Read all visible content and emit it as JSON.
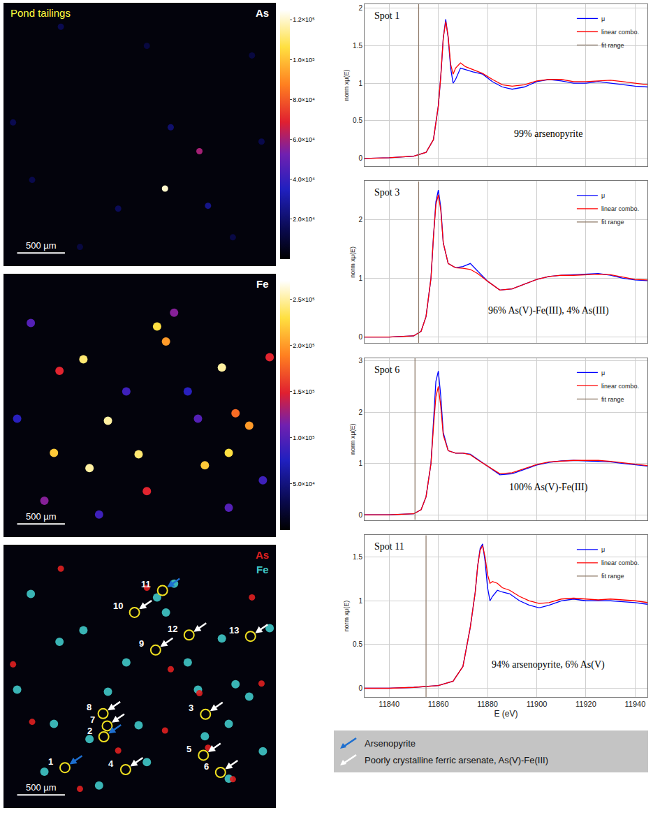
{
  "chart_data": [
    {
      "type": "map",
      "title": "Pond tailings",
      "element": "As",
      "xlim": [
        0,
        2850
      ],
      "ylim": [
        0,
        2750
      ],
      "tick_labels": false,
      "colorbar": {
        "range": [
          0,
          125000
        ],
        "ticks": [
          {
            "value": 20000,
            "label": "2.0×10⁴"
          },
          {
            "value": 40000,
            "label": "4.0×10⁴"
          },
          {
            "value": 60000,
            "label": "6.0×10⁴"
          },
          {
            "value": 80000,
            "label": "8.0×10⁴"
          },
          {
            "value": 100000,
            "label": "1.0×10⁵"
          },
          {
            "value": 120000,
            "label": "1.2×10⁵"
          }
        ]
      },
      "particles": [
        [
          2050,
          1200,
          60000
        ],
        [
          2140,
          630,
          25000
        ],
        [
          1690,
          810,
          120000
        ],
        [
          600,
          2500,
          15000
        ],
        [
          1500,
          2300,
          12000
        ],
        [
          100,
          1500,
          15000
        ],
        [
          2700,
          1300,
          14000
        ],
        [
          1200,
          600,
          16000
        ],
        [
          2400,
          300,
          13000
        ],
        [
          800,
          200,
          12000
        ],
        [
          1750,
          1450,
          20000
        ],
        [
          300,
          900,
          14000
        ],
        [
          2600,
          2200,
          12000
        ]
      ],
      "scale_bar": {
        "length": 500,
        "label": "500 µm"
      }
    },
    {
      "type": "map",
      "element": "Fe",
      "xlim": [
        0,
        2850
      ],
      "ylim": [
        0,
        2750
      ],
      "tick_labels": false,
      "colorbar": {
        "range": [
          0,
          270000
        ],
        "ticks": [
          {
            "value": 50000,
            "label": "5.0×10⁴"
          },
          {
            "value": 100000,
            "label": "1.0×10⁵"
          },
          {
            "value": 150000,
            "label": "1.5×10⁵"
          },
          {
            "value": 200000,
            "label": "2.0×10⁵"
          },
          {
            "value": 250000,
            "label": "2.5×10⁵"
          }
        ]
      },
      "particles": [
        [
          1607,
          2200,
          230000
        ],
        [
          1700,
          2043,
          200000
        ],
        [
          836,
          1857,
          240000
        ],
        [
          2285,
          1771,
          250000
        ],
        [
          586,
          1736,
          150000
        ],
        [
          1093,
          1214,
          250000
        ],
        [
          2035,
          1236,
          100000
        ],
        [
          528,
          879,
          220000
        ],
        [
          900,
          721,
          250000
        ],
        [
          1414,
          864,
          240000
        ],
        [
          2107,
          750,
          220000
        ],
        [
          2357,
          879,
          230000
        ],
        [
          2571,
          1164,
          200000
        ],
        [
          2428,
          1293,
          180000
        ],
        [
          1500,
          479,
          150000
        ],
        [
          1785,
          2343,
          120000
        ],
        [
          2785,
          1878,
          150000
        ],
        [
          286,
          2236,
          100000
        ],
        [
          428,
          379,
          120000
        ],
        [
          1285,
          1521,
          90000
        ],
        [
          1928,
          1521,
          80000
        ],
        [
          1000,
          236,
          90000
        ],
        [
          2357,
          307,
          100000
        ],
        [
          143,
          1236,
          80000
        ],
        [
          2714,
          593,
          90000
        ]
      ],
      "scale_bar": {
        "length": 500,
        "label": "500 µm"
      }
    },
    {
      "type": "composite_map",
      "xlim": [
        0,
        2850
      ],
      "ylim": [
        0,
        2750
      ],
      "tick_labels": false,
      "channels": [
        {
          "element": "As",
          "color": "#e02020"
        },
        {
          "element": "Fe",
          "color": "#40c8c8"
        }
      ],
      "spots": [
        {
          "label": "1",
          "x": 643,
          "y": 422,
          "mineral": "arsenopyrite"
        },
        {
          "label": "2",
          "x": 1050,
          "y": 744,
          "mineral": "arsenopyrite"
        },
        {
          "label": "3",
          "x": 2114,
          "y": 979,
          "mineral": "ferric arsenate"
        },
        {
          "label": "4",
          "x": 1278,
          "y": 401,
          "mineral": "ferric arsenate"
        },
        {
          "label": "5",
          "x": 2092,
          "y": 551,
          "mineral": "ferric arsenate"
        },
        {
          "label": "6",
          "x": 2271,
          "y": 372,
          "mineral": "ferric arsenate"
        },
        {
          "label": "7",
          "x": 1085,
          "y": 858,
          "mineral": "ferric arsenate"
        },
        {
          "label": "8",
          "x": 1042,
          "y": 986,
          "mineral": "ferric arsenate"
        },
        {
          "label": "9",
          "x": 1592,
          "y": 1650,
          "mineral": "ferric arsenate"
        },
        {
          "label": "10",
          "x": 1371,
          "y": 2043,
          "mineral": "ferric arsenate"
        },
        {
          "label": "11",
          "x": 1664,
          "y": 2272,
          "mineral": "arsenopyrite"
        },
        {
          "label": "12",
          "x": 1942,
          "y": 1807,
          "mineral": "ferric arsenate"
        },
        {
          "label": "13",
          "x": 2585,
          "y": 1793,
          "mineral": "ferric arsenate"
        }
      ],
      "arrow_legend": [
        {
          "mineral": "arsenopyrite",
          "color": "#1e6fd0",
          "label": "Arsenopyrite"
        },
        {
          "mineral": "ferric arsenate",
          "color": "#ffffff",
          "label": "Poorly crystalline ferric arsenate, As(V)-Fe(III)"
        }
      ],
      "scale_bar": {
        "length": 500,
        "label": "500 µm"
      }
    },
    {
      "type": "line",
      "x_label": "E (eV)",
      "y_label": "norm xμ(E)",
      "xlim": [
        11830,
        11945
      ],
      "xticks": [
        11840,
        11860,
        11880,
        11900,
        11920,
        11940
      ],
      "grid": true,
      "panels": [
        {
          "title": "Spot 1",
          "annotation": "99% arsenopyrite",
          "ylim": [
            -0.1,
            2.05
          ],
          "yticks": [
            0,
            0.5,
            1,
            1.5,
            2
          ],
          "fit_range": {
            "name": "fit range",
            "color": "#8b7765",
            "x": 11852
          },
          "x": [
            11830,
            11840,
            11850,
            11855,
            11858,
            11860,
            11861,
            11862,
            11863,
            11864,
            11865,
            11866,
            11867,
            11869,
            11871,
            11874,
            11878,
            11882,
            11886,
            11890,
            11895,
            11900,
            11905,
            11910,
            11915,
            11920,
            11925,
            11930,
            11935,
            11940,
            11945
          ],
          "series": [
            {
              "name": "μ",
              "color": "#0000ff",
              "values": [
                0,
                0.01,
                0.03,
                0.08,
                0.25,
                0.7,
                1.1,
                1.6,
                1.85,
                1.6,
                1.2,
                1.0,
                1.05,
                1.2,
                1.18,
                1.15,
                1.12,
                1.02,
                0.95,
                0.92,
                0.95,
                1.02,
                1.05,
                1.03,
                1.0,
                1.0,
                1.02,
                1.0,
                0.98,
                0.96,
                0.95
              ]
            },
            {
              "name": "linear combo.",
              "color": "#ff0000",
              "values": [
                0,
                0.01,
                0.03,
                0.08,
                0.25,
                0.7,
                1.1,
                1.6,
                1.82,
                1.62,
                1.25,
                1.12,
                1.2,
                1.27,
                1.22,
                1.18,
                1.13,
                1.05,
                0.98,
                0.96,
                0.98,
                1.03,
                1.05,
                1.05,
                1.02,
                1.02,
                1.03,
                1.04,
                1.02,
                1.0,
                0.98
              ]
            }
          ]
        },
        {
          "title": "Spot 3",
          "annotation": "96% As(V)-Fe(III), 4% As(III)",
          "ylim": [
            -0.1,
            2.65
          ],
          "yticks": [
            0,
            1,
            2
          ],
          "fit_range": {
            "name": "fit range",
            "color": "#8b7765",
            "x": 11852
          },
          "x": [
            11830,
            11840,
            11850,
            11853,
            11855,
            11857,
            11858,
            11859,
            11860,
            11861,
            11862,
            11864,
            11867,
            11870,
            11873,
            11876,
            11880,
            11885,
            11890,
            11895,
            11900,
            11905,
            11910,
            11915,
            11920,
            11925,
            11930,
            11935,
            11940,
            11945
          ],
          "series": [
            {
              "name": "μ",
              "color": "#0000ff",
              "values": [
                0,
                0,
                0.02,
                0.1,
                0.35,
                1.0,
                1.7,
                2.3,
                2.5,
                2.2,
                1.6,
                1.25,
                1.18,
                1.2,
                1.25,
                1.12,
                0.95,
                0.8,
                0.82,
                0.9,
                0.98,
                1.03,
                1.05,
                1.06,
                1.07,
                1.08,
                1.05,
                1.0,
                0.97,
                0.96
              ]
            },
            {
              "name": "linear combo.",
              "color": "#ff0000",
              "values": [
                0,
                0,
                0.02,
                0.1,
                0.35,
                1.0,
                1.7,
                2.25,
                2.42,
                2.15,
                1.6,
                1.25,
                1.18,
                1.17,
                1.15,
                1.08,
                0.95,
                0.8,
                0.82,
                0.9,
                0.98,
                1.03,
                1.05,
                1.05,
                1.06,
                1.07,
                1.06,
                1.02,
                0.98,
                0.97
              ]
            }
          ]
        },
        {
          "title": "Spot 6",
          "annotation": "100% As(V)-Fe(III)",
          "ylim": [
            -0.1,
            3.05
          ],
          "yticks": [
            0,
            1,
            2,
            3
          ],
          "fit_range": {
            "name": "fit range",
            "color": "#8b7765",
            "x": 11850.5
          },
          "x": [
            11830,
            11840,
            11850,
            11853,
            11855,
            11857,
            11858,
            11859,
            11860,
            11861,
            11862,
            11864,
            11867,
            11870,
            11873,
            11876,
            11880,
            11885,
            11890,
            11895,
            11900,
            11905,
            11910,
            11915,
            11920,
            11925,
            11930,
            11935,
            11940,
            11945
          ],
          "series": [
            {
              "name": "μ",
              "color": "#0000ff",
              "values": [
                0,
                0,
                0.02,
                0.1,
                0.35,
                1.0,
                1.8,
                2.6,
                2.8,
                2.3,
                1.6,
                1.25,
                1.2,
                1.2,
                1.18,
                1.08,
                0.95,
                0.78,
                0.8,
                0.88,
                0.97,
                1.02,
                1.05,
                1.06,
                1.05,
                1.05,
                1.03,
                1.0,
                0.97,
                0.95
              ]
            },
            {
              "name": "linear combo.",
              "color": "#ff0000",
              "values": [
                0,
                0,
                0.02,
                0.1,
                0.35,
                1.0,
                1.7,
                2.3,
                2.5,
                2.1,
                1.55,
                1.25,
                1.2,
                1.2,
                1.17,
                1.07,
                0.95,
                0.8,
                0.82,
                0.9,
                0.98,
                1.03,
                1.05,
                1.06,
                1.06,
                1.06,
                1.04,
                1.01,
                0.98,
                0.96
              ]
            }
          ]
        },
        {
          "title": "Spot 11",
          "annotation": "94% arsenopyrite, 6% As(V)",
          "ylim": [
            -0.1,
            1.75
          ],
          "yticks": [
            0,
            0.5,
            1,
            1.5
          ],
          "fit_range": {
            "name": "fit range",
            "color": "#8b7765",
            "x": 11855
          },
          "x": [
            11830,
            11840,
            11850,
            11860,
            11866,
            11870,
            11873,
            11875,
            11876,
            11877,
            11878,
            11879,
            11880,
            11881,
            11882,
            11884,
            11886,
            11889,
            11893,
            11897,
            11901,
            11905,
            11910,
            11915,
            11920,
            11925,
            11930,
            11935,
            11940,
            11945
          ],
          "series": [
            {
              "name": "μ",
              "color": "#0000ff",
              "values": [
                0,
                0,
                0.01,
                0.03,
                0.08,
                0.25,
                0.7,
                1.1,
                1.4,
                1.6,
                1.65,
                1.45,
                1.15,
                1.0,
                1.05,
                1.12,
                1.1,
                1.08,
                1.0,
                0.95,
                0.92,
                0.95,
                1.0,
                1.02,
                1.0,
                1.0,
                1.0,
                0.99,
                0.98,
                0.96
              ]
            },
            {
              "name": "linear combo.",
              "color": "#ff0000",
              "values": [
                0,
                0,
                0.01,
                0.03,
                0.08,
                0.25,
                0.7,
                1.1,
                1.4,
                1.58,
                1.63,
                1.5,
                1.3,
                1.2,
                1.22,
                1.2,
                1.15,
                1.12,
                1.05,
                1.0,
                0.97,
                0.98,
                1.02,
                1.03,
                1.02,
                1.01,
                1.02,
                1.01,
                1.0,
                0.98
              ]
            }
          ]
        }
      ]
    }
  ]
}
